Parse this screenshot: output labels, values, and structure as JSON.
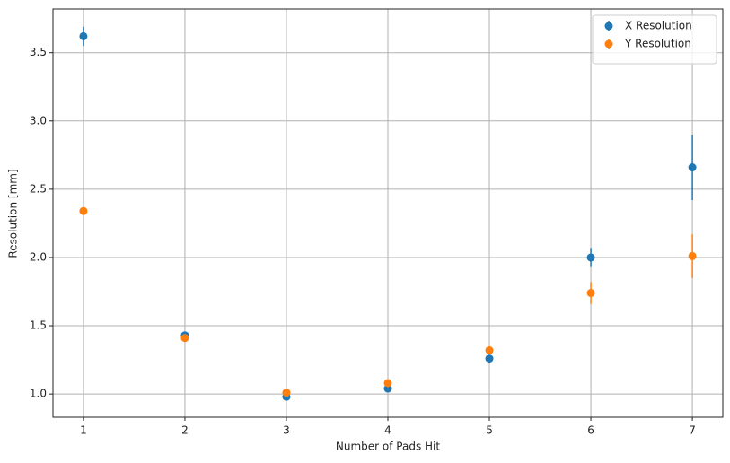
{
  "chart_data": {
    "type": "errorbar",
    "x_label": "Number of Pads Hit",
    "y_label": "Resolution [mm]",
    "x": [
      1,
      2,
      3,
      4,
      5,
      6,
      7
    ],
    "series": [
      {
        "name": "X Resolution",
        "color": "#1f77b4",
        "values": [
          3.62,
          1.43,
          0.98,
          1.04,
          1.26,
          2.0,
          2.66
        ],
        "errors": [
          0.07,
          0.01,
          0.01,
          0.01,
          0.01,
          0.07,
          0.24
        ]
      },
      {
        "name": "Y Resolution",
        "color": "#ff7f0e",
        "values": [
          2.34,
          1.41,
          1.01,
          1.08,
          1.32,
          1.74,
          2.01
        ],
        "errors": [
          0.02,
          0.01,
          0.01,
          0.01,
          0.01,
          0.08,
          0.16
        ]
      }
    ],
    "xlim": [
      0.7,
      7.3
    ],
    "ylim": [
      0.83,
      3.82
    ],
    "xticks": [
      1,
      2,
      3,
      4,
      5,
      6,
      7
    ],
    "yticks": [
      {
        "value": 1,
        "label": "1.0"
      },
      1.5,
      {
        "value": 2,
        "label": "2.0"
      },
      2.5,
      {
        "value": 3,
        "label": "3.0"
      },
      3.5
    ],
    "grid": true,
    "legend": "upper right"
  }
}
